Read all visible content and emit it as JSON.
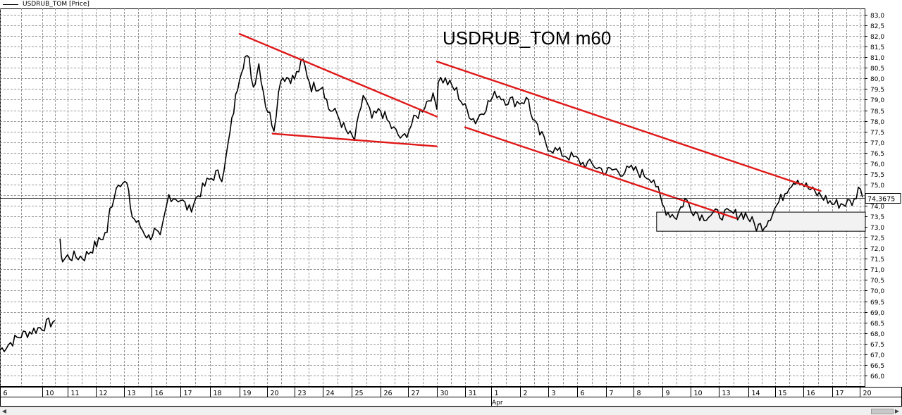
{
  "legend": {
    "label": "USDRUB_TOM [Price]"
  },
  "chart_data": {
    "type": "line",
    "title": "USDRUB_TOM m60",
    "series": [
      {
        "name": "USDRUB_TOM [Price]"
      }
    ],
    "x_day_labels": [
      "6",
      "10",
      "11",
      "12",
      "13",
      "16",
      "17",
      "18",
      "19",
      "20",
      "23",
      "24",
      "25",
      "26",
      "27",
      "30",
      "31",
      "1",
      "2",
      "3",
      "6",
      "7",
      "8",
      "9",
      "10",
      "13",
      "14",
      "15",
      "16",
      "17",
      "20"
    ],
    "x_month_label": "Apr",
    "ylim": [
      65.5,
      83.3
    ],
    "y_ticks": [
      "66,0",
      "66,5",
      "67,0",
      "67,5",
      "68,0",
      "68,5",
      "69,0",
      "69,5",
      "70,0",
      "70,5",
      "71,0",
      "71,5",
      "72,0",
      "72,5",
      "73,0",
      "73,5",
      "74,0",
      "74,5",
      "75,0",
      "75,5",
      "76,0",
      "76,5",
      "77,0",
      "77,5",
      "78,0",
      "78,5",
      "79,0",
      "79,5",
      "80,0",
      "80,5",
      "81,0",
      "81,5",
      "82,0",
      "82,5",
      "83,0"
    ],
    "last_price_label": "74,3675",
    "last_price": 74.3675,
    "grid": true,
    "price_path": [
      [
        0,
        67.2
      ],
      [
        0.5,
        67.9
      ],
      [
        1,
        68.3
      ],
      [
        1.5,
        68.6
      ],
      [
        1.7,
        72.2
      ],
      [
        1.8,
        71.4
      ],
      [
        2.0,
        71.6
      ],
      [
        2.6,
        71.6
      ],
      [
        3.1,
        72.3
      ],
      [
        3.4,
        72.8
      ],
      [
        3.5,
        73.8
      ],
      [
        3.8,
        75.2
      ],
      [
        4.1,
        75.0
      ],
      [
        4.3,
        73.5
      ],
      [
        4.6,
        73.0
      ],
      [
        4.9,
        72.5
      ],
      [
        5.1,
        72.8
      ],
      [
        5.3,
        72.4
      ],
      [
        5.6,
        74.5
      ],
      [
        6.0,
        74.3
      ],
      [
        6.3,
        73.8
      ],
      [
        6.6,
        74.5
      ],
      [
        6.9,
        75.1
      ],
      [
        7.2,
        75.5
      ],
      [
        7.4,
        75.4
      ],
      [
        7.55,
        76.3
      ],
      [
        7.8,
        78.5
      ],
      [
        8.0,
        80.2
      ],
      [
        8.2,
        81.0
      ],
      [
        8.35,
        80.8
      ],
      [
        8.5,
        79.6
      ],
      [
        8.7,
        80.7
      ],
      [
        8.95,
        78.8
      ],
      [
        9.25,
        77.7
      ],
      [
        9.5,
        80.1
      ],
      [
        10.0,
        80.0
      ],
      [
        10.3,
        80.8
      ],
      [
        10.6,
        79.6
      ],
      [
        11.0,
        79.7
      ],
      [
        11.2,
        78.6
      ],
      [
        11.5,
        78.3
      ],
      [
        11.8,
        77.5
      ],
      [
        12.1,
        77.1
      ],
      [
        12.4,
        79.2
      ],
      [
        12.7,
        78.1
      ],
      [
        13.0,
        78.5
      ],
      [
        13.4,
        77.7
      ],
      [
        13.8,
        77.1
      ],
      [
        14.2,
        78.0
      ],
      [
        14.5,
        78.6
      ],
      [
        14.8,
        79.2
      ],
      [
        15.0,
        78.8
      ],
      [
        15.05,
        80.0
      ],
      [
        15.3,
        79.9
      ],
      [
        15.7,
        79.4
      ],
      [
        16.0,
        78.6
      ],
      [
        16.4,
        78.0
      ],
      [
        16.8,
        78.7
      ],
      [
        17.2,
        79.3
      ],
      [
        17.5,
        79.0
      ],
      [
        17.9,
        78.9
      ],
      [
        18.3,
        79.0
      ],
      [
        18.45,
        78.0
      ],
      [
        18.7,
        77.4
      ],
      [
        19.0,
        76.8
      ],
      [
        19.4,
        76.5
      ],
      [
        19.8,
        76.3
      ],
      [
        20.2,
        76.0
      ],
      [
        20.6,
        75.9
      ],
      [
        21.0,
        75.6
      ],
      [
        21.3,
        75.7
      ],
      [
        21.6,
        75.6
      ],
      [
        22.0,
        75.7
      ],
      [
        22.3,
        75.5
      ],
      [
        22.7,
        75.3
      ],
      [
        23.0,
        74.0
      ],
      [
        23.2,
        73.7
      ],
      [
        23.5,
        73.5
      ],
      [
        23.8,
        74.3
      ],
      [
        24.1,
        73.8
      ],
      [
        24.4,
        73.5
      ],
      [
        24.8,
        73.6
      ],
      [
        25.2,
        73.6
      ],
      [
        25.5,
        73.6
      ],
      [
        25.9,
        73.6
      ],
      [
        26.3,
        73.0
      ],
      [
        26.6,
        73.1
      ],
      [
        26.9,
        73.7
      ],
      [
        27.2,
        74.3
      ],
      [
        27.5,
        75.0
      ],
      [
        27.8,
        75.3
      ],
      [
        28.1,
        74.9
      ],
      [
        28.4,
        74.6
      ],
      [
        28.7,
        74.4
      ],
      [
        29.0,
        74.1
      ],
      [
        29.4,
        74.1
      ],
      [
        29.8,
        74.2
      ],
      [
        29.95,
        74.9
      ],
      [
        30.1,
        74.4
      ]
    ],
    "trendlines": [
      {
        "x1": 8.0,
        "y1": 82.1,
        "x2": 15.0,
        "y2": 78.2
      },
      {
        "x1": 9.2,
        "y1": 77.4,
        "x2": 15.0,
        "y2": 76.8
      },
      {
        "x1": 15.0,
        "y1": 80.8,
        "x2": 28.6,
        "y2": 74.7
      },
      {
        "x1": 16.0,
        "y1": 77.7,
        "x2": 25.6,
        "y2": 73.4
      }
    ],
    "box": {
      "x1": 22.8,
      "y1": 73.7,
      "x2": 30.2,
      "y2": 72.8
    },
    "colors": {
      "price": "#000000",
      "trend": "#e01818",
      "grid": "#7a7a7a",
      "box": "#f2f2f2"
    }
  }
}
